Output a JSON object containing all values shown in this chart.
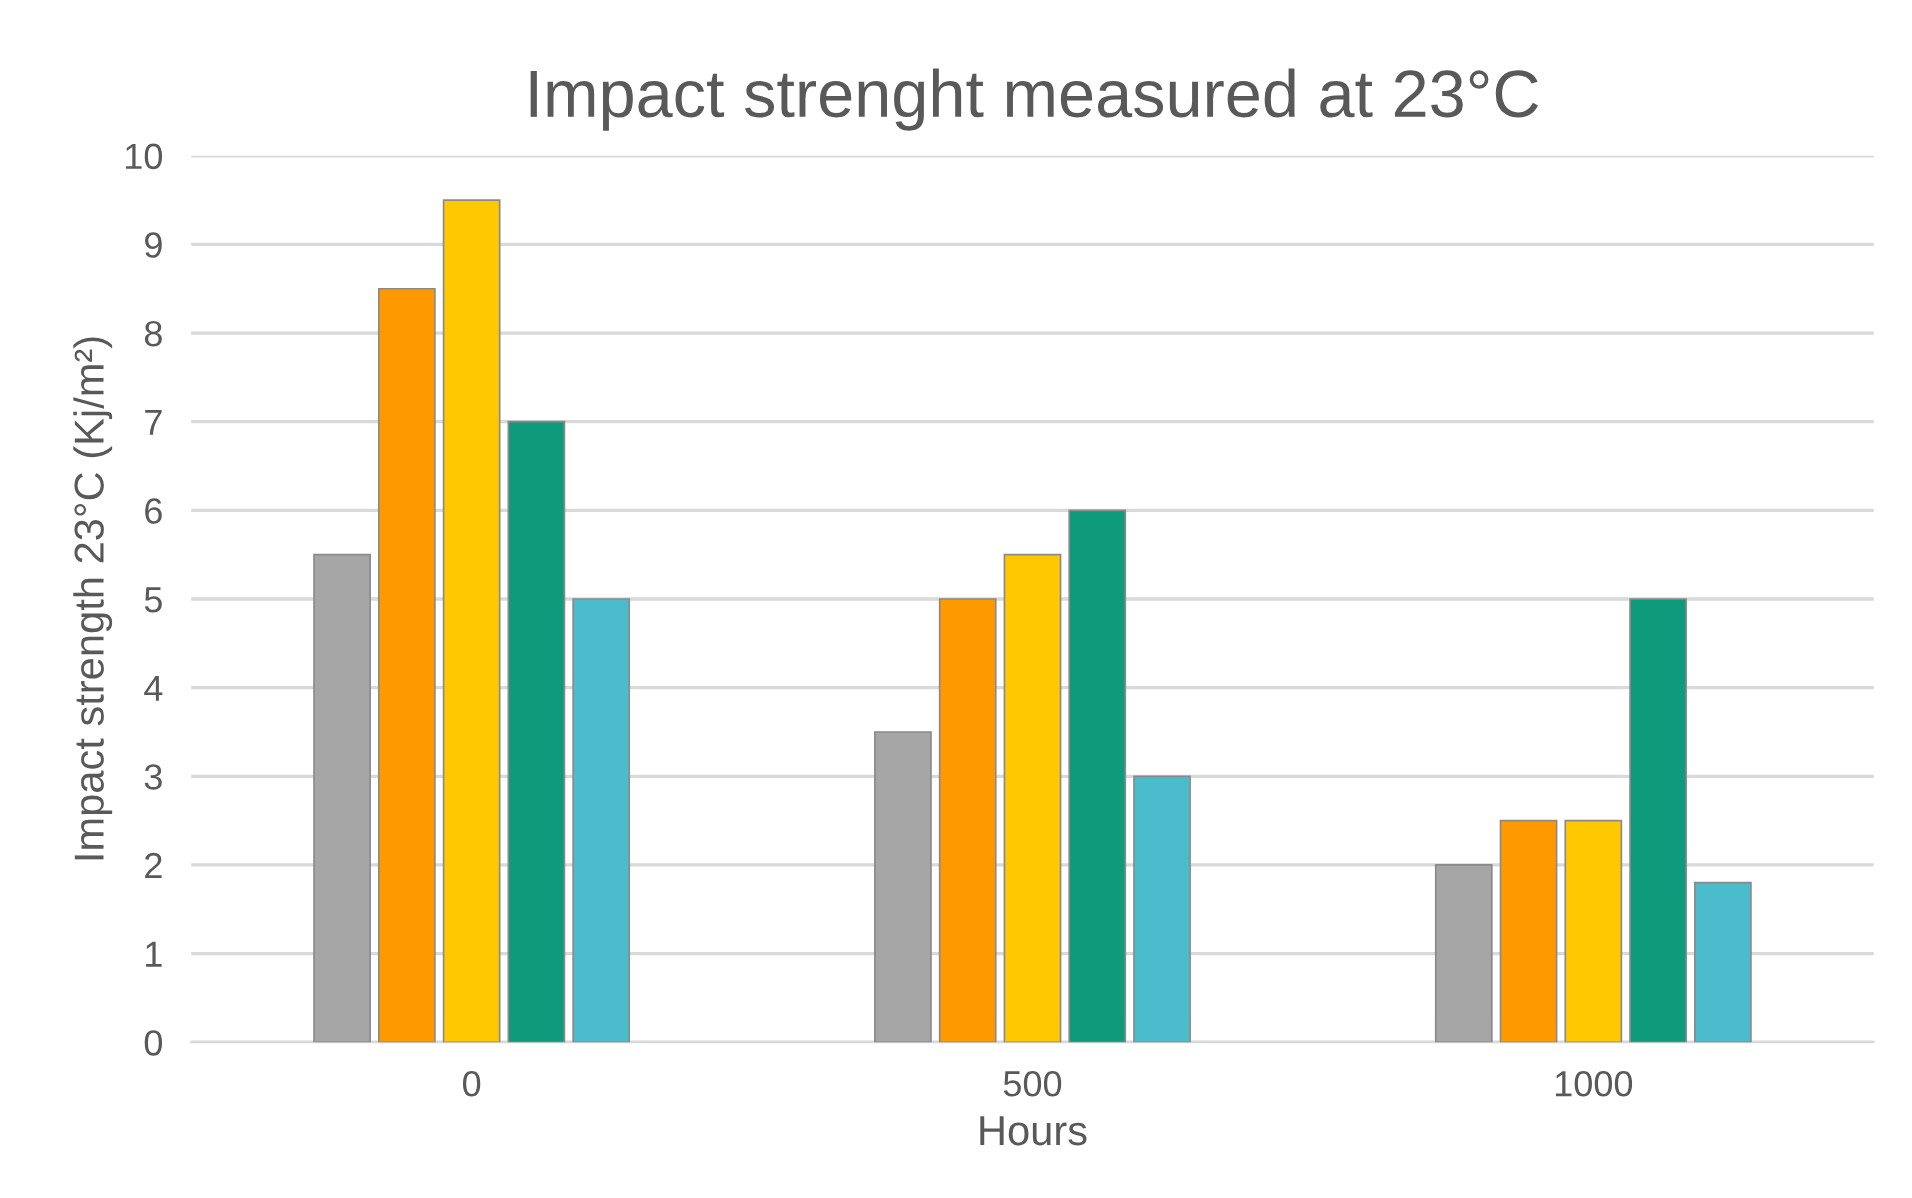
{
  "chart_data": {
    "type": "bar",
    "title": "Impact strenght measured at 23°C",
    "xlabel": "Hours",
    "ylabel": "Impact strength 23°C (Kj/m²)",
    "categories": [
      "0",
      "500",
      "1000"
    ],
    "series": [
      {
        "color": "#a6a6a6",
        "values": [
          5.5,
          3.5,
          2
        ]
      },
      {
        "color": "#ff9900",
        "values": [
          8.5,
          5,
          2.5
        ]
      },
      {
        "color": "#ffc800",
        "values": [
          9.5,
          5.5,
          2.5
        ]
      },
      {
        "color": "#0e9b7c",
        "values": [
          7,
          6,
          5
        ]
      },
      {
        "color": "#4bbccc",
        "values": [
          5,
          3,
          1.8
        ]
      }
    ],
    "ylim": [
      0,
      10
    ],
    "yticks": [
      0,
      1,
      2,
      3,
      4,
      5,
      6,
      7,
      8,
      9,
      10
    ],
    "grid": "y",
    "legend": false
  }
}
